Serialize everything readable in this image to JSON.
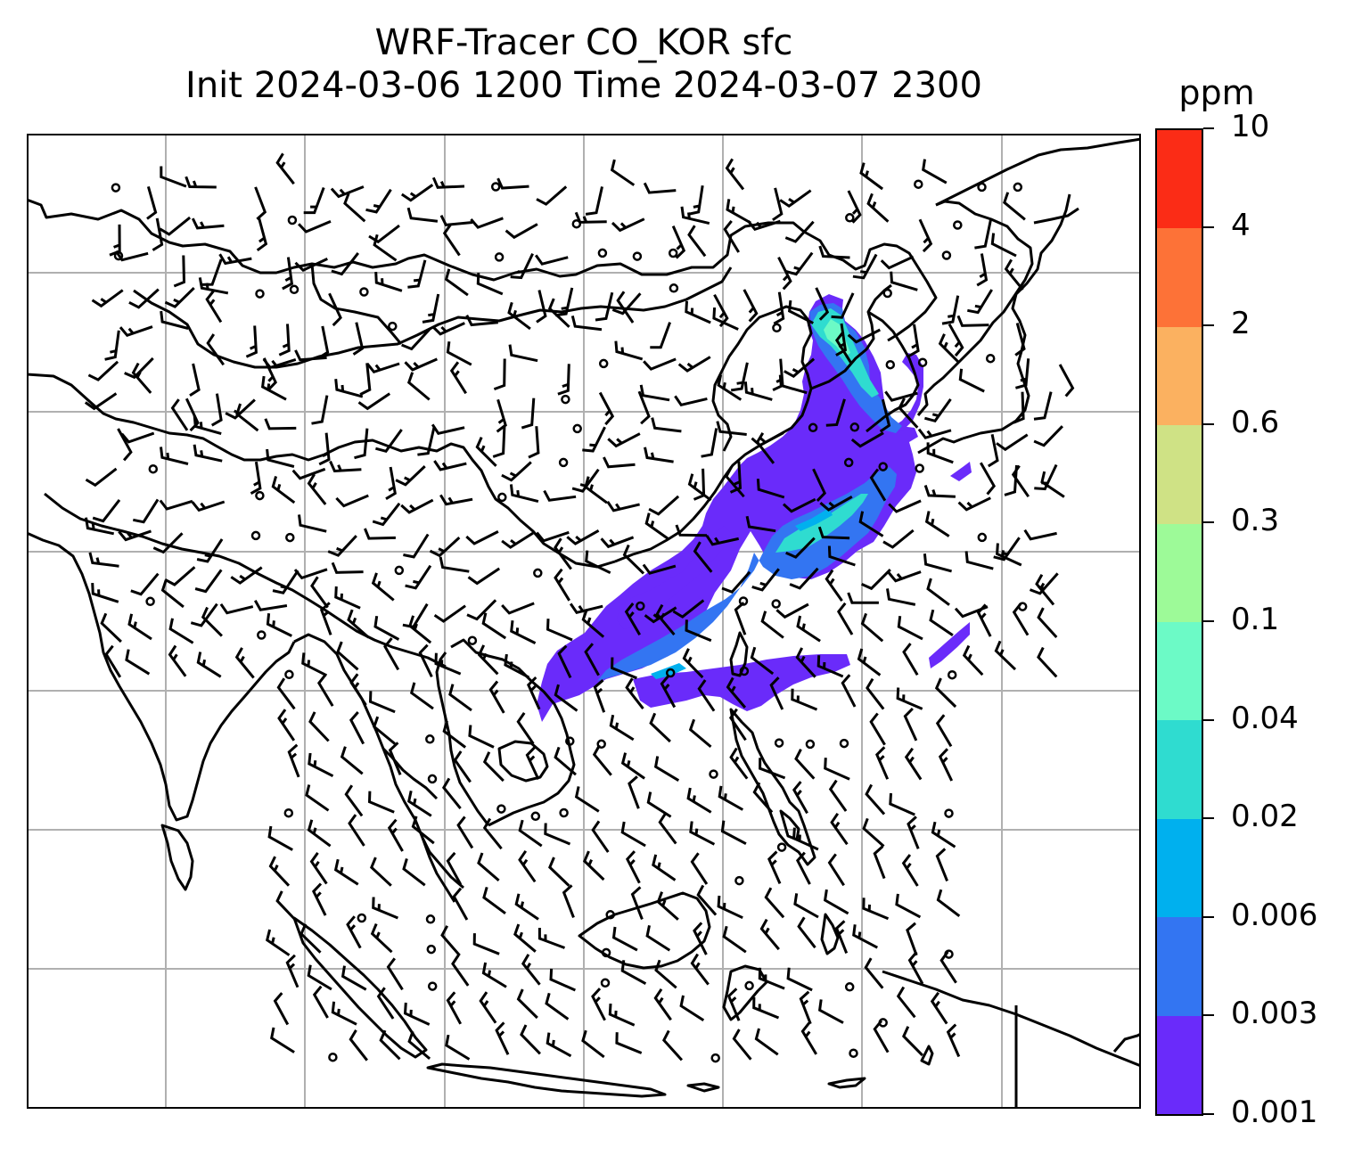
{
  "title": {
    "line1": "WRF-Tracer CO_KOR sfc",
    "line2": "Init 2024-03-06 1200 Time 2024-03-07 2300"
  },
  "colorbar": {
    "unit": "ppm",
    "levels": [
      "0.001",
      "0.003",
      "0.006",
      "0.02",
      "0.04",
      "0.1",
      "0.3",
      "0.6",
      "2",
      "4",
      "10"
    ],
    "colors": [
      "#6a2bfa",
      "#3375f2",
      "#00b0ee",
      "#2fdcd0",
      "#6cfac6",
      "#9dfa98",
      "#cfe285",
      "#fbb160",
      "#fd7237",
      "#fb2c16"
    ]
  },
  "map": {
    "gridlines": true,
    "gridline_color": "#b0b0b0",
    "coastline_color": "#000000",
    "field": "CO_KOR tracer concentration at surface",
    "plume_colors": {
      "low": "#6a2bfa",
      "mid": "#3375f2",
      "mid2": "#00b0ee",
      "high": "#2fdcd0",
      "peak": "#6cfac6"
    }
  }
}
